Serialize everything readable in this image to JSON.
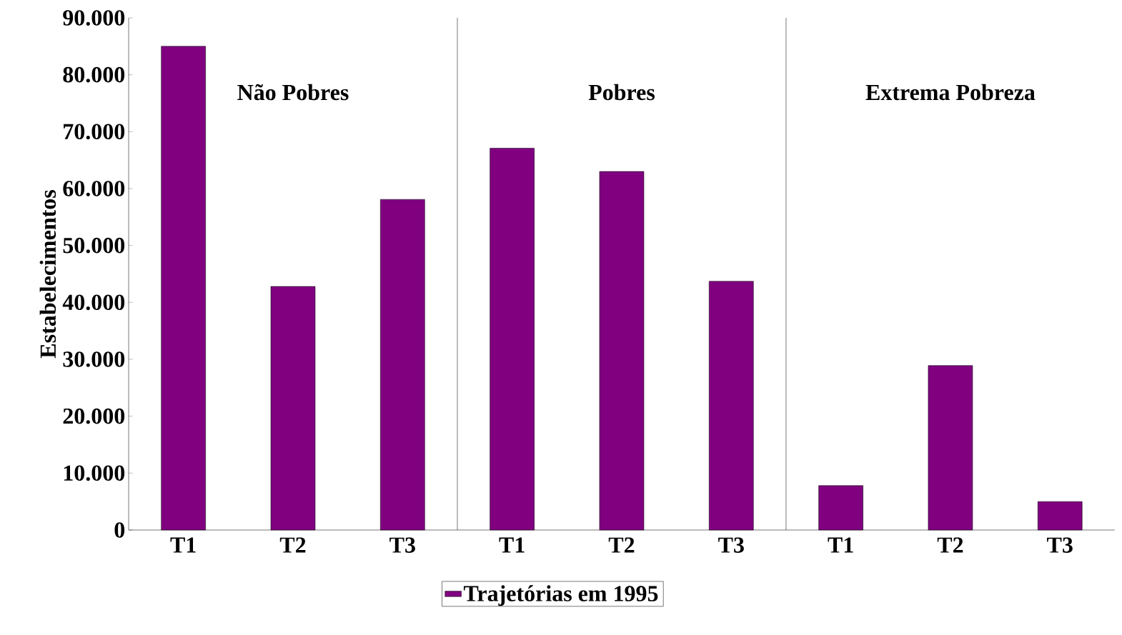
{
  "chart_data": {
    "type": "bar",
    "ylabel": "Estabelecimentos",
    "categories": [
      "T1",
      "T2",
      "T3",
      "T1",
      "T2",
      "T3",
      "T1",
      "T2",
      "T3"
    ],
    "series": [
      {
        "name": "Trajetórias em 1995",
        "color": "#800080",
        "values": [
          85000,
          42800,
          58100,
          67100,
          63000,
          43700,
          7800,
          28900,
          5000
        ]
      }
    ],
    "ylim": [
      0,
      90000
    ],
    "yticks": [
      {
        "value": 0,
        "label": "0"
      },
      {
        "value": 10000,
        "label": "10.000"
      },
      {
        "value": 20000,
        "label": "20.000"
      },
      {
        "value": 30000,
        "label": "30.000"
      },
      {
        "value": 40000,
        "label": "40.000"
      },
      {
        "value": 50000,
        "label": "50.000"
      },
      {
        "value": 60000,
        "label": "60.000"
      },
      {
        "value": 70000,
        "label": "70.000"
      },
      {
        "value": 80000,
        "label": "80.000"
      },
      {
        "value": 90000,
        "label": "90.000"
      }
    ],
    "annotations": [
      "Não Pobres",
      "Pobres",
      "Extrema Pobreza"
    ],
    "grid": false,
    "legend": "bottom"
  }
}
